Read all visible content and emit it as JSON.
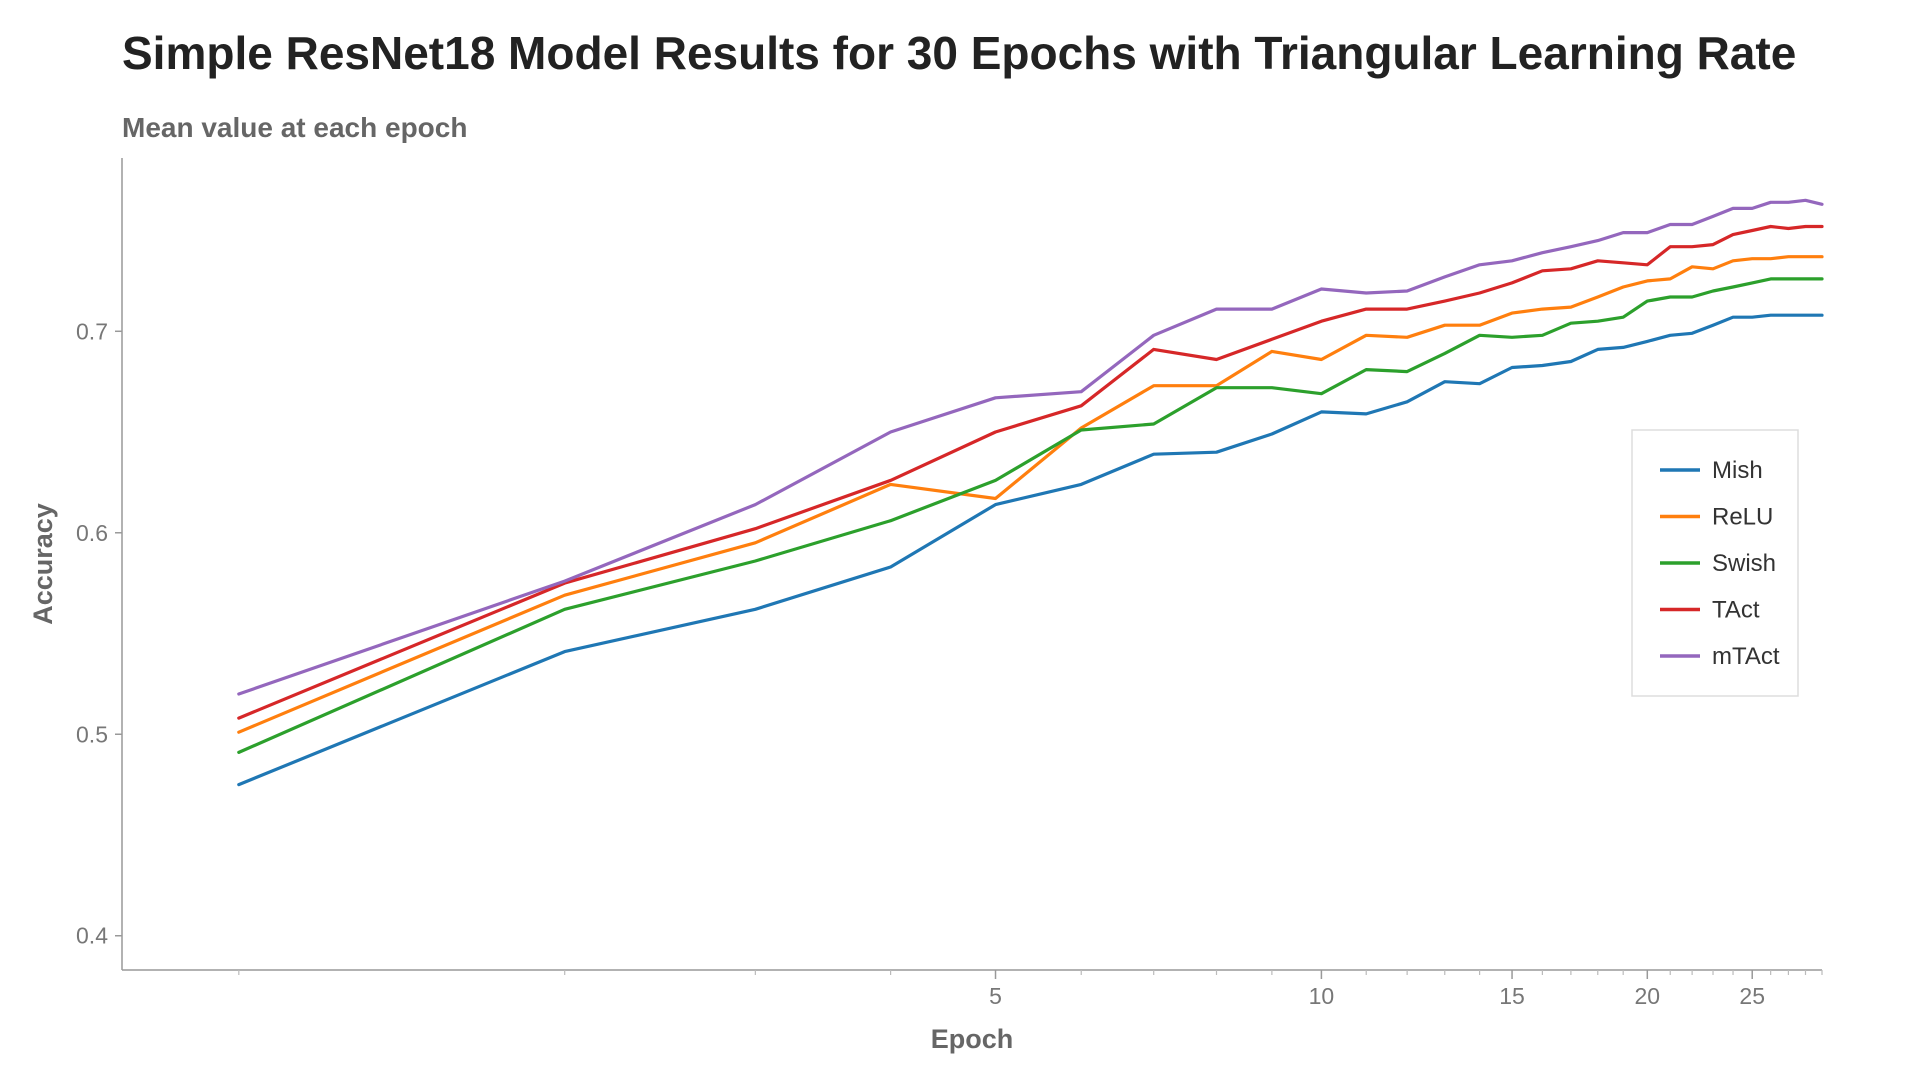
{
  "chart_data": {
    "type": "line",
    "title": "Simple ResNet18 Model Results for 30 Epochs with Triangular Learning Rate",
    "subtitle": "Mean value at each epoch",
    "xlabel": "Epoch",
    "ylabel": "Accuracy",
    "x_scale": "log",
    "xlim": [
      0.78,
      29
    ],
    "ylim": [
      0.383,
      0.786
    ],
    "x_ticks": [
      5,
      10,
      15,
      20,
      25
    ],
    "y_ticks": [
      0.4,
      0.5,
      0.6,
      0.7
    ],
    "grid": false,
    "legend_position": "right",
    "x": [
      1,
      2,
      3,
      4,
      5,
      6,
      7,
      8,
      9,
      10,
      11,
      12,
      13,
      14,
      15,
      16,
      17,
      18,
      19,
      20,
      21,
      22,
      23,
      24,
      25,
      26,
      27,
      28,
      29
    ],
    "series": [
      {
        "name": "Mish",
        "color": "#1f77b4",
        "values": [
          0.475,
          0.541,
          0.562,
          0.583,
          0.614,
          0.624,
          0.639,
          0.64,
          0.649,
          0.66,
          0.659,
          0.665,
          0.675,
          0.674,
          0.682,
          0.683,
          0.685,
          0.691,
          0.692,
          0.695,
          0.698,
          0.699,
          0.703,
          0.707,
          0.707,
          0.708,
          0.708,
          0.708,
          0.708
        ]
      },
      {
        "name": "ReLU",
        "color": "#ff7f0e",
        "values": [
          0.501,
          0.569,
          0.595,
          0.624,
          0.617,
          0.652,
          0.673,
          0.673,
          0.69,
          0.686,
          0.698,
          0.697,
          0.703,
          0.703,
          0.709,
          0.711,
          0.712,
          0.717,
          0.722,
          0.725,
          0.726,
          0.732,
          0.731,
          0.735,
          0.736,
          0.736,
          0.737,
          0.737,
          0.737
        ]
      },
      {
        "name": "Swish",
        "color": "#2ca02c",
        "values": [
          0.491,
          0.562,
          0.586,
          0.606,
          0.626,
          0.651,
          0.654,
          0.672,
          0.672,
          0.669,
          0.681,
          0.68,
          0.689,
          0.698,
          0.697,
          0.698,
          0.704,
          0.705,
          0.707,
          0.715,
          0.717,
          0.717,
          0.72,
          0.722,
          0.724,
          0.726,
          0.726,
          0.726,
          0.726
        ]
      },
      {
        "name": "TAct",
        "color": "#d62728",
        "values": [
          0.508,
          0.575,
          0.602,
          0.626,
          0.65,
          0.663,
          0.691,
          0.686,
          0.696,
          0.705,
          0.711,
          0.711,
          0.715,
          0.719,
          0.724,
          0.73,
          0.731,
          0.735,
          0.734,
          0.733,
          0.742,
          0.742,
          0.743,
          0.748,
          0.75,
          0.752,
          0.751,
          0.752,
          0.752
        ]
      },
      {
        "name": "mTAct",
        "color": "#9467bd",
        "values": [
          0.52,
          0.576,
          0.614,
          0.65,
          0.667,
          0.67,
          0.698,
          0.711,
          0.711,
          0.721,
          0.719,
          0.72,
          0.727,
          0.733,
          0.735,
          0.739,
          0.742,
          0.745,
          0.749,
          0.749,
          0.753,
          0.753,
          0.757,
          0.761,
          0.761,
          0.764,
          0.764,
          0.765,
          0.763
        ]
      }
    ]
  }
}
